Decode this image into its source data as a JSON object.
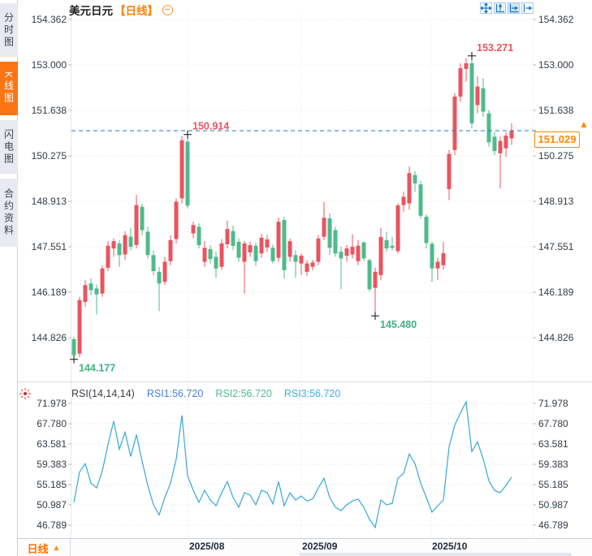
{
  "sidebar": {
    "tabs": [
      {
        "label": "分时图",
        "active": false
      },
      {
        "label": "K线图",
        "active": true
      },
      {
        "label": "闪电图",
        "active": false
      },
      {
        "label": "合约资料",
        "active": false
      }
    ]
  },
  "titlebar": {
    "symbol": "美元日元",
    "period_tag": "【日线】",
    "collapse_icon": "minus-circle-icon"
  },
  "toolbar": {
    "icons": [
      "crosshair-move",
      "zoom-vertical-axis",
      "zoom-horizontal-axis",
      "pan-right"
    ]
  },
  "rsi_header": {
    "name": "RSI(14,14,14)",
    "items": [
      {
        "label": "RSI1:56.720",
        "color": "#4b7fd6"
      },
      {
        "label": "RSI2:56.720",
        "color": "#4dbd8e"
      },
      {
        "label": "RSI3:56.720",
        "color": "#41b0dd"
      }
    ],
    "settings_icon": "indicator-settings-icon"
  },
  "price_tag": {
    "value": "151.029",
    "arrow": "▲"
  },
  "bottom_bar": {
    "period": "日线",
    "arrow": "▲"
  },
  "colors": {
    "up": "#e9545f",
    "down": "#4fba8c",
    "rsi_line": "#36a7da",
    "dashed_line": "#1f7ad4",
    "accent_orange": "#ff7e00",
    "grid": "#eedfdf",
    "axis_text": "#333b47",
    "anno_high": "#e9545f",
    "anno_low": "#3cb383"
  },
  "chart_data": {
    "type": "candlestick",
    "title": "美元日元 日线 (USD/JPY daily with RSI)",
    "x_ticks": [
      {
        "label": "2025/08",
        "x": 233
      },
      {
        "label": "2025/09",
        "x": 372
      },
      {
        "label": "2025/10",
        "x": 532
      }
    ],
    "panels": [
      {
        "name": "price",
        "y_ticks": [
          "154.362",
          "153.000",
          "151.638",
          "150.275",
          "148.913",
          "147.551",
          "146.189",
          "144.826"
        ],
        "last_price": 151.029,
        "annotations": [
          {
            "text": "144.177",
            "value": 144.177,
            "index": 0,
            "color": "#3cb383",
            "position": "below"
          },
          {
            "text": "150.914",
            "value": 150.914,
            "index": 20,
            "color": "#e9545f",
            "position": "above"
          },
          {
            "text": "145.480",
            "value": 145.48,
            "index": 53,
            "color": "#3cb383",
            "position": "below"
          },
          {
            "text": "153.271",
            "value": 153.271,
            "index": 70,
            "color": "#e9545f",
            "position": "above"
          }
        ],
        "candles": [
          [
            144.78,
            144.85,
            144.177,
            144.3
          ],
          [
            144.35,
            146.05,
            144.25,
            145.95
          ],
          [
            145.9,
            146.55,
            145.75,
            146.4
          ],
          [
            146.45,
            146.6,
            146.1,
            146.25
          ],
          [
            146.3,
            146.42,
            145.52,
            146.12
          ],
          [
            146.15,
            147.0,
            146.05,
            146.9
          ],
          [
            146.92,
            147.72,
            146.82,
            147.58
          ],
          [
            147.5,
            147.8,
            147.25,
            147.72
          ],
          [
            147.65,
            147.75,
            146.95,
            147.3
          ],
          [
            147.32,
            148.02,
            147.15,
            147.9
          ],
          [
            147.85,
            148.12,
            147.45,
            147.55
          ],
          [
            147.6,
            149.1,
            147.5,
            148.8
          ],
          [
            148.75,
            148.85,
            147.9,
            148.05
          ],
          [
            148.0,
            148.15,
            147.2,
            147.3
          ],
          [
            147.3,
            147.45,
            146.7,
            146.82
          ],
          [
            146.8,
            146.95,
            145.62,
            146.45
          ],
          [
            146.5,
            147.25,
            146.4,
            147.1
          ],
          [
            147.12,
            147.9,
            147.0,
            147.75
          ],
          [
            147.78,
            149.0,
            147.65,
            148.9
          ],
          [
            149.0,
            150.86,
            148.85,
            150.74
          ],
          [
            150.7,
            150.914,
            148.7,
            148.78
          ],
          [
            147.95,
            148.3,
            147.8,
            148.2
          ],
          [
            148.15,
            148.25,
            147.5,
            147.6
          ],
          [
            147.1,
            147.72,
            146.95,
            147.52
          ],
          [
            147.48,
            147.6,
            147.05,
            147.18
          ],
          [
            147.25,
            147.4,
            146.62,
            146.9
          ],
          [
            146.95,
            147.78,
            146.85,
            147.65
          ],
          [
            147.62,
            148.33,
            147.5,
            148.08
          ],
          [
            148.02,
            148.18,
            147.45,
            147.58
          ],
          [
            147.7,
            147.8,
            147.1,
            147.22
          ],
          [
            147.1,
            147.73,
            146.15,
            147.65
          ],
          [
            147.38,
            147.7,
            147.25,
            147.6
          ],
          [
            147.58,
            147.68,
            146.98,
            147.12
          ],
          [
            147.35,
            147.95,
            147.22,
            147.82
          ],
          [
            147.53,
            147.9,
            147.4,
            147.77
          ],
          [
            147.52,
            147.62,
            147.05,
            147.12
          ],
          [
            147.22,
            148.43,
            147.1,
            148.3
          ],
          [
            148.35,
            148.45,
            146.6,
            146.85
          ],
          [
            147.25,
            147.8,
            147.1,
            147.72
          ],
          [
            147.3,
            147.45,
            146.62,
            147.1
          ],
          [
            147.05,
            147.35,
            146.7,
            147.28
          ],
          [
            146.8,
            147.15,
            146.68,
            147.05
          ],
          [
            146.95,
            147.15,
            146.85,
            147.08
          ],
          [
            147.1,
            147.9,
            147.0,
            147.8
          ],
          [
            147.85,
            148.9,
            147.75,
            148.42
          ],
          [
            148.4,
            148.55,
            147.3,
            147.52
          ],
          [
            148.05,
            148.15,
            147.25,
            147.35
          ],
          [
            147.4,
            147.55,
            146.28,
            147.2
          ],
          [
            147.28,
            147.6,
            147.1,
            147.5
          ],
          [
            147.32,
            147.92,
            147.2,
            147.55
          ],
          [
            147.12,
            147.75,
            147.0,
            147.58
          ],
          [
            147.68,
            147.72,
            147.12,
            147.2
          ],
          [
            147.15,
            147.2,
            146.2,
            146.28
          ],
          [
            146.32,
            146.92,
            145.48,
            146.8
          ],
          [
            146.7,
            148.12,
            146.55,
            147.84
          ],
          [
            147.75,
            148.0,
            147.4,
            147.5
          ],
          [
            147.58,
            147.85,
            147.45,
            147.52
          ],
          [
            147.42,
            148.85,
            147.35,
            148.79
          ],
          [
            148.8,
            149.2,
            148.6,
            149.05
          ],
          [
            148.85,
            149.96,
            148.66,
            149.76
          ],
          [
            149.7,
            149.82,
            149.2,
            149.45
          ],
          [
            149.42,
            149.52,
            148.4,
            148.48
          ],
          [
            148.45,
            148.52,
            147.5,
            147.66
          ],
          [
            147.64,
            147.7,
            146.5,
            146.9
          ],
          [
            146.9,
            147.22,
            146.56,
            147.1
          ],
          [
            147.0,
            147.7,
            146.85,
            147.36
          ],
          [
            149.28,
            150.45,
            148.95,
            150.33
          ],
          [
            150.45,
            152.15,
            150.3,
            152.05
          ],
          [
            152.05,
            153.05,
            151.9,
            152.9
          ],
          [
            152.88,
            153.2,
            152.5,
            153.05
          ],
          [
            153.05,
            153.271,
            151.1,
            151.25
          ],
          [
            151.8,
            152.65,
            151.55,
            152.35
          ],
          [
            152.3,
            152.6,
            151.45,
            151.6
          ],
          [
            151.55,
            151.65,
            150.55,
            150.68
          ],
          [
            150.85,
            151.0,
            150.3,
            150.42
          ],
          [
            150.35,
            150.85,
            149.3,
            150.72
          ],
          [
            150.5,
            150.98,
            150.25,
            150.88
          ],
          [
            150.8,
            151.25,
            150.6,
            151.029
          ]
        ]
      },
      {
        "name": "rsi",
        "y_ticks": [
          "71.978",
          "67.780",
          "63.581",
          "59.383",
          "55.185",
          "50.987",
          "46.789"
        ],
        "values": [
          51.5,
          57.8,
          59.5,
          55.5,
          54.5,
          58.0,
          63.5,
          68.3,
          62.5,
          66.0,
          61.0,
          65.5,
          60.0,
          55.0,
          51.0,
          48.9,
          52.5,
          55.5,
          60.5,
          69.5,
          57.0,
          54.0,
          51.5,
          54.0,
          52.0,
          50.8,
          53.5,
          55.8,
          52.5,
          50.5,
          53.5,
          53.0,
          51.0,
          54.0,
          53.5,
          51.2,
          55.8,
          50.8,
          53.5,
          52.0,
          52.8,
          51.8,
          52.2,
          54.5,
          56.5,
          52.5,
          50.5,
          49.8,
          51.0,
          51.8,
          52.2,
          50.5,
          48.0,
          46.3,
          52.0,
          51.0,
          51.3,
          56.5,
          57.5,
          61.5,
          59.5,
          55.5,
          52.5,
          49.5,
          50.8,
          52.0,
          63.0,
          67.5,
          70.0,
          72.3,
          62.0,
          64.0,
          60.5,
          56.0,
          54.0,
          53.5,
          55.0,
          56.72
        ]
      }
    ]
  }
}
